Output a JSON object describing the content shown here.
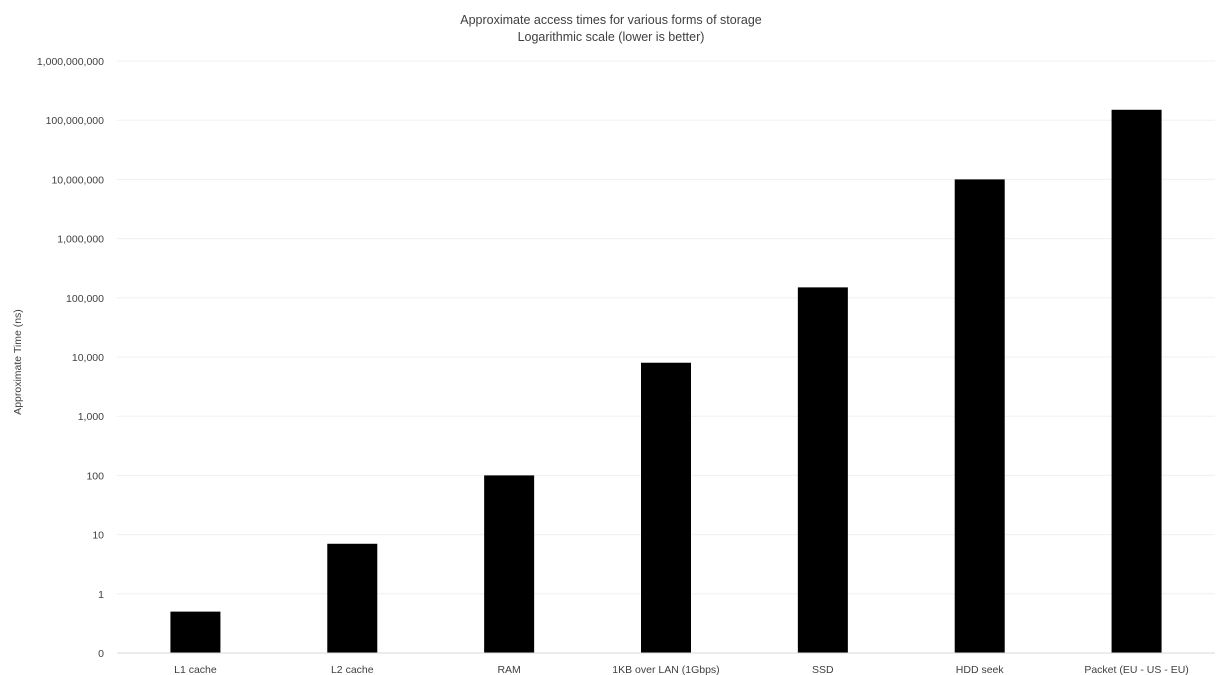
{
  "chart_data": {
    "type": "bar",
    "title": "Approximate access times for various forms of storage",
    "subtitle": "Logarithmic scale (lower is better)",
    "xlabel": "",
    "ylabel": "Approximate Time (ns)",
    "yscale": "log",
    "ylim": [
      0.1,
      1000000000
    ],
    "grid": true,
    "legend": "none",
    "bar_color": "#000000",
    "gridline_color": "#f0f0f0",
    "axis_line_color": "#d9d9d9",
    "ytick_values": [
      0.1,
      1,
      10,
      100,
      1000,
      10000,
      100000,
      1000000,
      10000000,
      100000000,
      1000000000
    ],
    "ytick_labels": [
      "0",
      "1",
      "10",
      "100",
      "1,000",
      "10,000",
      "100,000",
      "1,000,000",
      "10,000,000",
      "100,000,000",
      "1,000,000,000"
    ],
    "categories": [
      "L1 cache",
      "L2 cache",
      "RAM",
      "1KB over LAN (1Gbps)",
      "SSD",
      "HDD seek",
      "Packet (EU - US - EU)"
    ],
    "values": [
      0.5,
      7,
      100,
      8000,
      150000,
      10000000,
      150000000
    ]
  }
}
